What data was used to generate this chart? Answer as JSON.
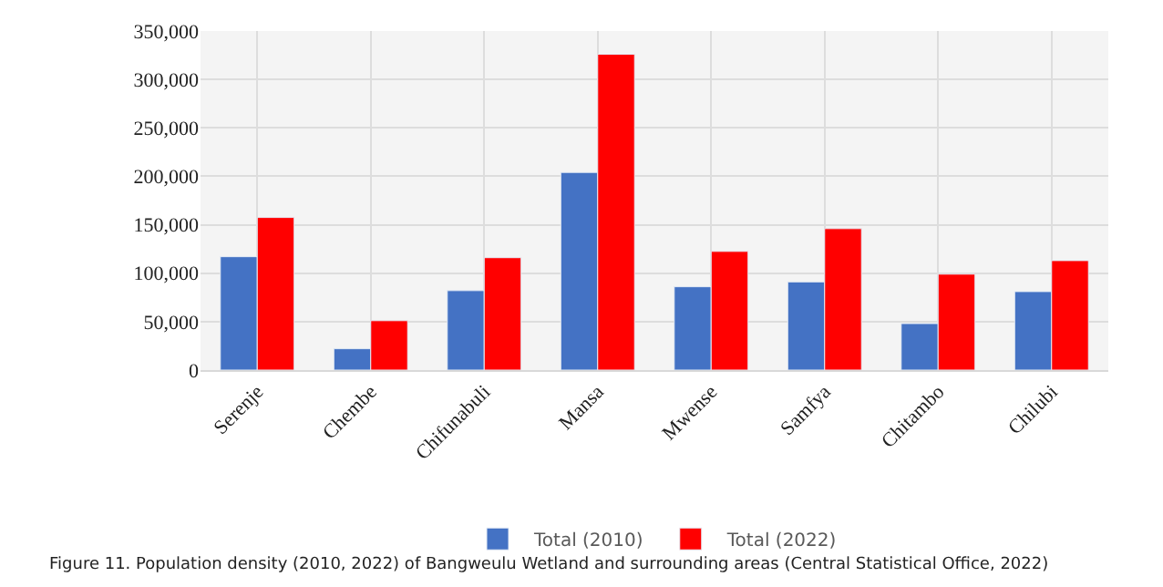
{
  "chart_data": {
    "type": "bar",
    "categories": [
      "Serenje",
      "Chembe",
      "Chifunabuli",
      "Mansa",
      "Mwense",
      "Samfya",
      "Chitambo",
      "Chilubi"
    ],
    "series": [
      {
        "name": "Total (2010)",
        "color": "#4472c4",
        "values": [
          117000,
          22000,
          82000,
          204000,
          86000,
          91000,
          48000,
          81000
        ]
      },
      {
        "name": "Total (2022)",
        "color": "#ff0000",
        "values": [
          157500,
          51000,
          116000,
          326000,
          122500,
          146000,
          99000,
          113000
        ]
      }
    ],
    "ylim": [
      0,
      350000
    ],
    "yticks": [
      {
        "value": 0,
        "label": "0"
      },
      {
        "value": 50000,
        "label": "50,000"
      },
      {
        "value": 100000,
        "label": "100,000"
      },
      {
        "value": 150000,
        "label": "150,000"
      },
      {
        "value": 200000,
        "label": "200,000"
      },
      {
        "value": 250000,
        "label": "250,000"
      },
      {
        "value": 300000,
        "label": "300,000"
      },
      {
        "value": 350000,
        "label": "350,000"
      }
    ],
    "grid": true,
    "legend": "bottom",
    "annotations": [
      "Figure 11. Population density (2010, 2022) of Bangweulu Wetland and surrounding areas (Central Statistical Office, 2022)"
    ]
  }
}
